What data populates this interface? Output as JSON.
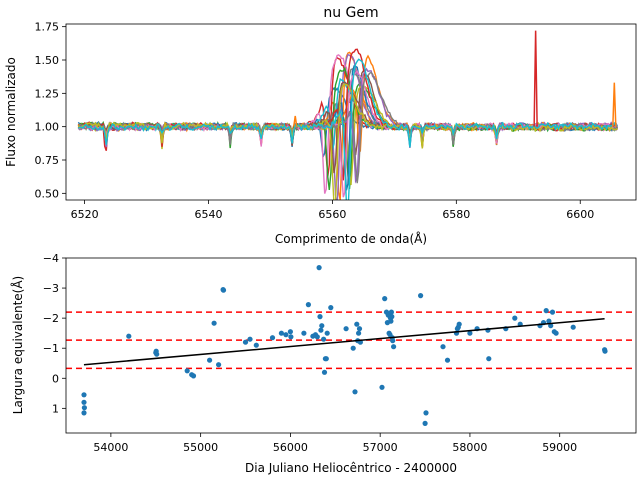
{
  "chart_data": [
    {
      "type": "line",
      "title": "nu Gem",
      "xlabel": "Comprimento de onda(Å)",
      "ylabel": "Fluxo normalizado",
      "xlim": [
        6517,
        6609
      ],
      "ylim": [
        0.45,
        1.77
      ],
      "xticks": [
        "6520",
        "6540",
        "6560",
        "6580",
        "6600"
      ],
      "yticks": [
        "0.50",
        "0.75",
        "1.00",
        "1.25",
        "1.50",
        "1.75"
      ],
      "grid": false,
      "wavelength_range": [
        6519,
        6606
      ],
      "spectra_count": 20,
      "emission_peak_range": [
        1.28,
        1.59
      ],
      "emission_center_range": [
        6560.5,
        6566.0
      ],
      "absorption_min_range": [
        0.51,
        0.93
      ],
      "telluric_lines": [
        6523.5,
        6532.5,
        6543.5,
        6548.5,
        6553.5,
        6572.5,
        6574.5,
        6579.5,
        6586.5
      ],
      "spikes": [
        {
          "x": 6592.8,
          "y": 1.72,
          "color": "#d62728"
        },
        {
          "x": 6605.5,
          "y": 1.33,
          "color": "#ff7f0e"
        },
        {
          "x": 6554.0,
          "y": 1.08,
          "color": "#ff7f0e"
        }
      ]
    },
    {
      "type": "scatter",
      "xlabel": "Dia Juliano Heliocêntrico - 2400000",
      "ylabel": "Largura equivalente(Å)",
      "xlim": [
        53500,
        59850
      ],
      "ylim": [
        1.82,
        -4.0
      ],
      "y_inverted": true,
      "xticks": [
        "54000",
        "55000",
        "56000",
        "57000",
        "58000",
        "59000"
      ],
      "yticks": [
        "−4",
        "−3",
        "−2",
        "−1",
        "0",
        "1"
      ],
      "grid": false,
      "fit_line": {
        "x": [
          53700,
          59500
        ],
        "y": [
          -0.45,
          -1.98
        ]
      },
      "hlines": [
        -2.2,
        -1.27,
        -0.33
      ],
      "points": [
        [
          53700,
          0.55
        ],
        [
          53700,
          0.8
        ],
        [
          53700,
          1.15
        ],
        [
          53705,
          0.98
        ],
        [
          54200,
          -1.4
        ],
        [
          54500,
          -0.85
        ],
        [
          54505,
          -0.9
        ],
        [
          54510,
          -0.8
        ],
        [
          54850,
          -0.25
        ],
        [
          54900,
          -0.12
        ],
        [
          54920,
          -0.08
        ],
        [
          55100,
          -0.6
        ],
        [
          55150,
          -1.83
        ],
        [
          55200,
          -0.45
        ],
        [
          55250,
          -2.95
        ],
        [
          55255,
          -2.93
        ],
        [
          55500,
          -1.2
        ],
        [
          55550,
          -1.3
        ],
        [
          55620,
          -1.1
        ],
        [
          55800,
          -1.35
        ],
        [
          55900,
          -1.5
        ],
        [
          55950,
          -1.45
        ],
        [
          56000,
          -1.55
        ],
        [
          56005,
          -1.38
        ],
        [
          56150,
          -1.5
        ],
        [
          56200,
          -2.45
        ],
        [
          56250,
          -1.4
        ],
        [
          56280,
          -1.45
        ],
        [
          56300,
          -1.38
        ],
        [
          56320,
          -3.68
        ],
        [
          56330,
          -2.05
        ],
        [
          56340,
          -1.6
        ],
        [
          56350,
          -1.75
        ],
        [
          56370,
          -1.3
        ],
        [
          56380,
          -0.2
        ],
        [
          56390,
          -0.65
        ],
        [
          56400,
          -0.65
        ],
        [
          56410,
          -1.5
        ],
        [
          56450,
          -2.35
        ],
        [
          56620,
          -1.65
        ],
        [
          56700,
          -1.0
        ],
        [
          56720,
          0.45
        ],
        [
          56740,
          -1.8
        ],
        [
          56750,
          -1.25
        ],
        [
          56760,
          -1.5
        ],
        [
          56770,
          -1.65
        ],
        [
          56780,
          -1.2
        ],
        [
          57020,
          0.3
        ],
        [
          57050,
          -2.65
        ],
        [
          57070,
          -2.2
        ],
        [
          57080,
          -1.85
        ],
        [
          57090,
          -2.1
        ],
        [
          57100,
          -1.5
        ],
        [
          57110,
          -1.45
        ],
        [
          57115,
          -2.0
        ],
        [
          57120,
          -1.9
        ],
        [
          57125,
          -2.2
        ],
        [
          57130,
          -2.05
        ],
        [
          57135,
          -1.35
        ],
        [
          57140,
          -1.25
        ],
        [
          57150,
          -1.05
        ],
        [
          57450,
          -2.75
        ],
        [
          57500,
          1.5
        ],
        [
          57510,
          1.15
        ],
        [
          57700,
          -1.05
        ],
        [
          57750,
          -0.6
        ],
        [
          57850,
          -1.5
        ],
        [
          57860,
          -1.65
        ],
        [
          57870,
          -1.7
        ],
        [
          57880,
          -1.8
        ],
        [
          58000,
          -1.5
        ],
        [
          58080,
          -1.65
        ],
        [
          58200,
          -1.6
        ],
        [
          58210,
          -0.65
        ],
        [
          58400,
          -1.65
        ],
        [
          58500,
          -2.0
        ],
        [
          58560,
          -1.8
        ],
        [
          58780,
          -1.75
        ],
        [
          58820,
          -1.85
        ],
        [
          58850,
          -2.25
        ],
        [
          58880,
          -1.9
        ],
        [
          58900,
          -1.75
        ],
        [
          58920,
          -2.2
        ],
        [
          58940,
          -1.55
        ],
        [
          58960,
          -1.5
        ],
        [
          59150,
          -1.7
        ],
        [
          59500,
          -0.95
        ],
        [
          59505,
          -0.9
        ]
      ]
    }
  ]
}
